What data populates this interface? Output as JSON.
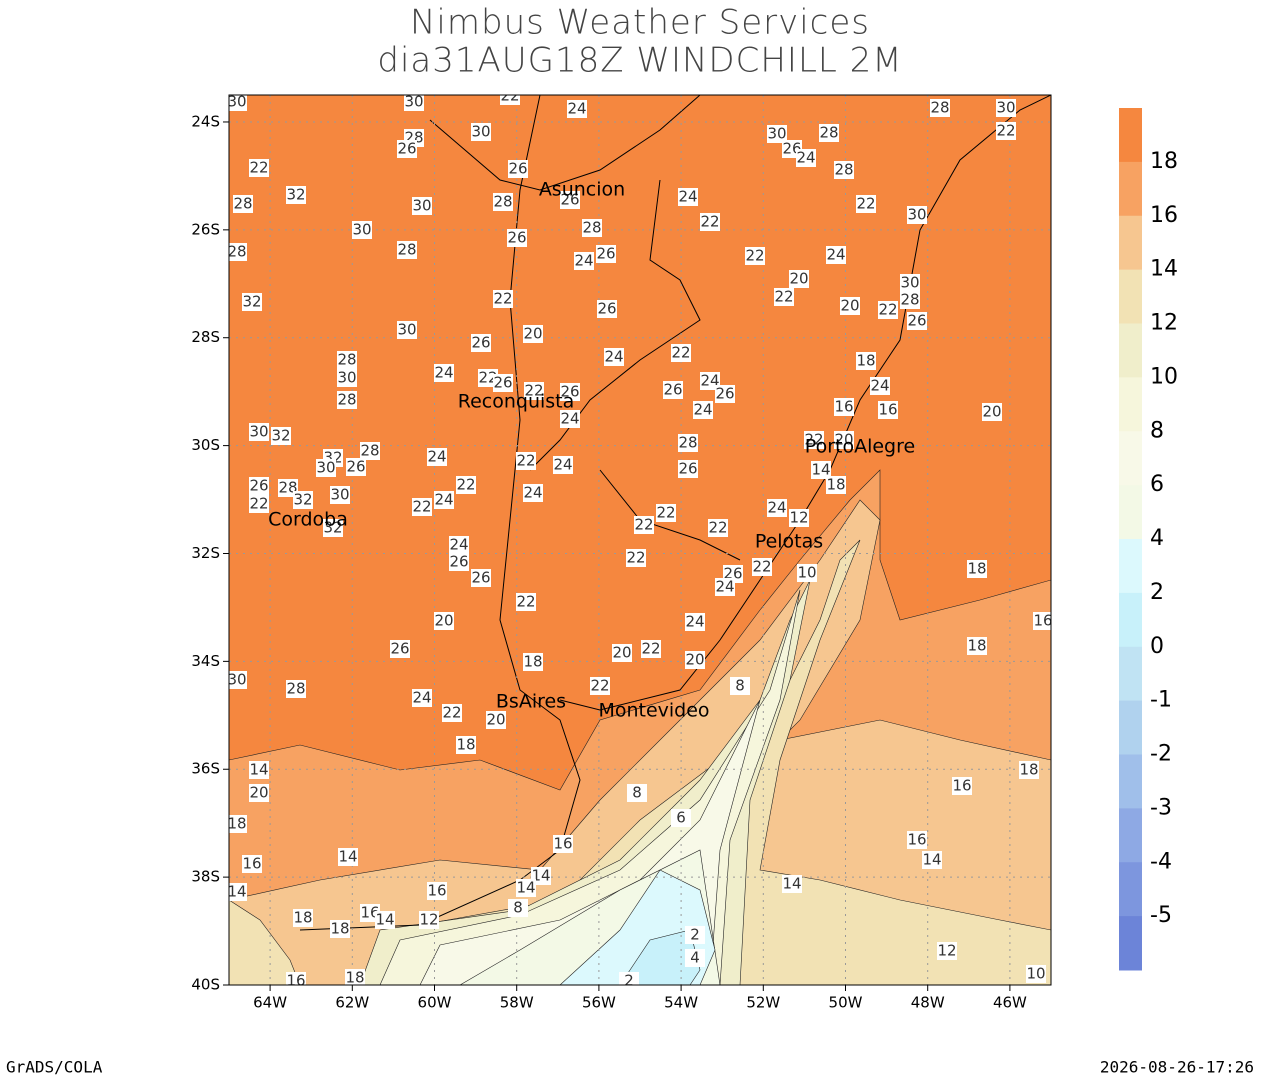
{
  "header": {
    "title": "Nimbus Weather Services",
    "subtitle": "dia31AUG18Z WINDCHILL 2M"
  },
  "map": {
    "xlim": [
      -65,
      -45
    ],
    "ylim": [
      -40,
      -23.5
    ],
    "grid": true,
    "xticks": [
      {
        "value": -64,
        "label": "64W"
      },
      {
        "value": -62,
        "label": "62W"
      },
      {
        "value": -60,
        "label": "60W"
      },
      {
        "value": -58,
        "label": "58W"
      },
      {
        "value": -56,
        "label": "56W"
      },
      {
        "value": -54,
        "label": "54W"
      },
      {
        "value": -52,
        "label": "52W"
      },
      {
        "value": -50,
        "label": "50W"
      },
      {
        "value": -48,
        "label": "48W"
      },
      {
        "value": -46,
        "label": "46W"
      }
    ],
    "yticks": [
      {
        "value": -24,
        "label": "24S"
      },
      {
        "value": -26,
        "label": "26S"
      },
      {
        "value": -28,
        "label": "28S"
      },
      {
        "value": -30,
        "label": "30S"
      },
      {
        "value": -32,
        "label": "32S"
      },
      {
        "value": -34,
        "label": "34S"
      },
      {
        "value": -36,
        "label": "36S"
      },
      {
        "value": -38,
        "label": "38S"
      },
      {
        "value": -40,
        "label": "40S"
      }
    ],
    "cities": [
      "Asuncion",
      "Reconquista",
      "Cordoba",
      "PortoAlegre",
      "Pelotas",
      "BsAires",
      "Montevideo"
    ],
    "contour_labels": [
      30,
      30,
      22,
      24,
      30,
      28,
      26,
      22,
      32,
      28,
      26,
      26,
      28,
      30,
      26,
      28,
      30,
      28,
      28,
      24,
      26,
      24,
      22,
      22,
      20,
      24,
      22,
      20,
      22,
      30,
      28,
      26,
      24,
      28,
      22,
      30,
      30,
      28,
      26,
      28,
      30,
      22,
      32,
      22,
      26,
      20,
      30,
      26,
      24,
      22,
      18,
      24,
      20,
      16,
      16,
      24,
      22,
      26,
      22,
      28,
      30,
      28,
      26,
      24,
      26,
      24,
      26,
      24,
      30,
      32,
      28,
      26,
      24,
      22,
      24,
      24,
      22,
      24,
      22,
      32,
      26,
      30,
      28,
      26,
      28,
      32,
      30,
      22,
      32,
      22,
      22,
      22,
      24,
      12,
      14,
      18,
      20,
      22,
      24,
      26,
      26,
      22,
      22,
      26,
      24,
      10,
      22,
      20,
      24,
      18,
      16,
      18,
      26,
      20,
      22,
      20,
      18,
      30,
      28,
      24,
      22,
      20,
      22,
      18,
      8,
      14,
      20,
      18,
      8,
      6,
      18,
      16,
      16,
      14,
      16,
      14,
      16,
      14,
      14,
      14,
      16,
      14,
      8,
      18,
      18,
      16,
      14,
      12,
      2,
      4,
      12,
      10,
      16,
      18,
      2
    ]
  },
  "colorbar": {
    "levels": [
      18,
      16,
      14,
      12,
      10,
      8,
      6,
      4,
      2,
      0,
      -1,
      -2,
      -3,
      -4,
      -5
    ],
    "colors": [
      "#f5873f",
      "#f7a262",
      "#f6c690",
      "#f2e2b4",
      "#f0eecb",
      "#f6f6dc",
      "#f8f9e8",
      "#f3f9e6",
      "#dcf9fd",
      "#c8f1fa",
      "#c0e3f3",
      "#b0d2ee",
      "#a0bfea",
      "#8ea9e4",
      "#7d96de",
      "#6c84d8"
    ]
  },
  "footer": {
    "left": "GrADS/COLA",
    "right": "2026-08-26-17:26"
  }
}
